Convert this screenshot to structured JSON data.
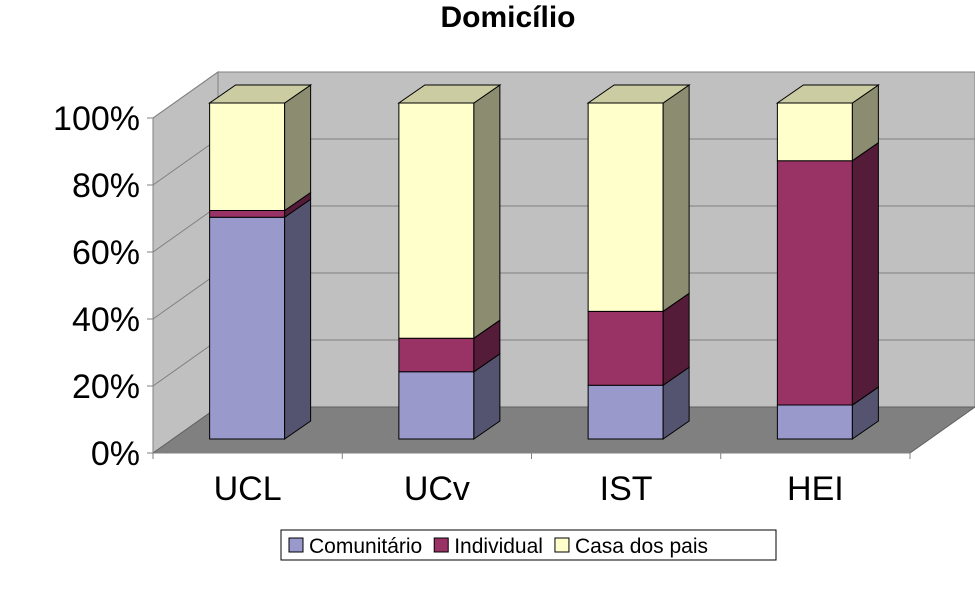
{
  "chart_data": {
    "type": "bar",
    "stacked": "percent",
    "three_d": true,
    "title": "Domicílio",
    "categories": [
      "UCL",
      "UCv",
      "IST",
      "HEI"
    ],
    "series": [
      {
        "name": "Comunitário",
        "values": [
          66,
          20,
          16,
          10
        ],
        "color": "#9999cc"
      },
      {
        "name": "Individual",
        "values": [
          2,
          10,
          22,
          72
        ],
        "color": "#993366"
      },
      {
        "name": "Casa dos pais",
        "values": [
          32,
          70,
          62,
          17
        ],
        "color": "#ffffcc"
      }
    ],
    "ylim": [
      0,
      100
    ],
    "yticks": [
      "0%",
      "20%",
      "40%",
      "60%",
      "80%",
      "100%"
    ],
    "grid": true,
    "legend": "bottom"
  }
}
